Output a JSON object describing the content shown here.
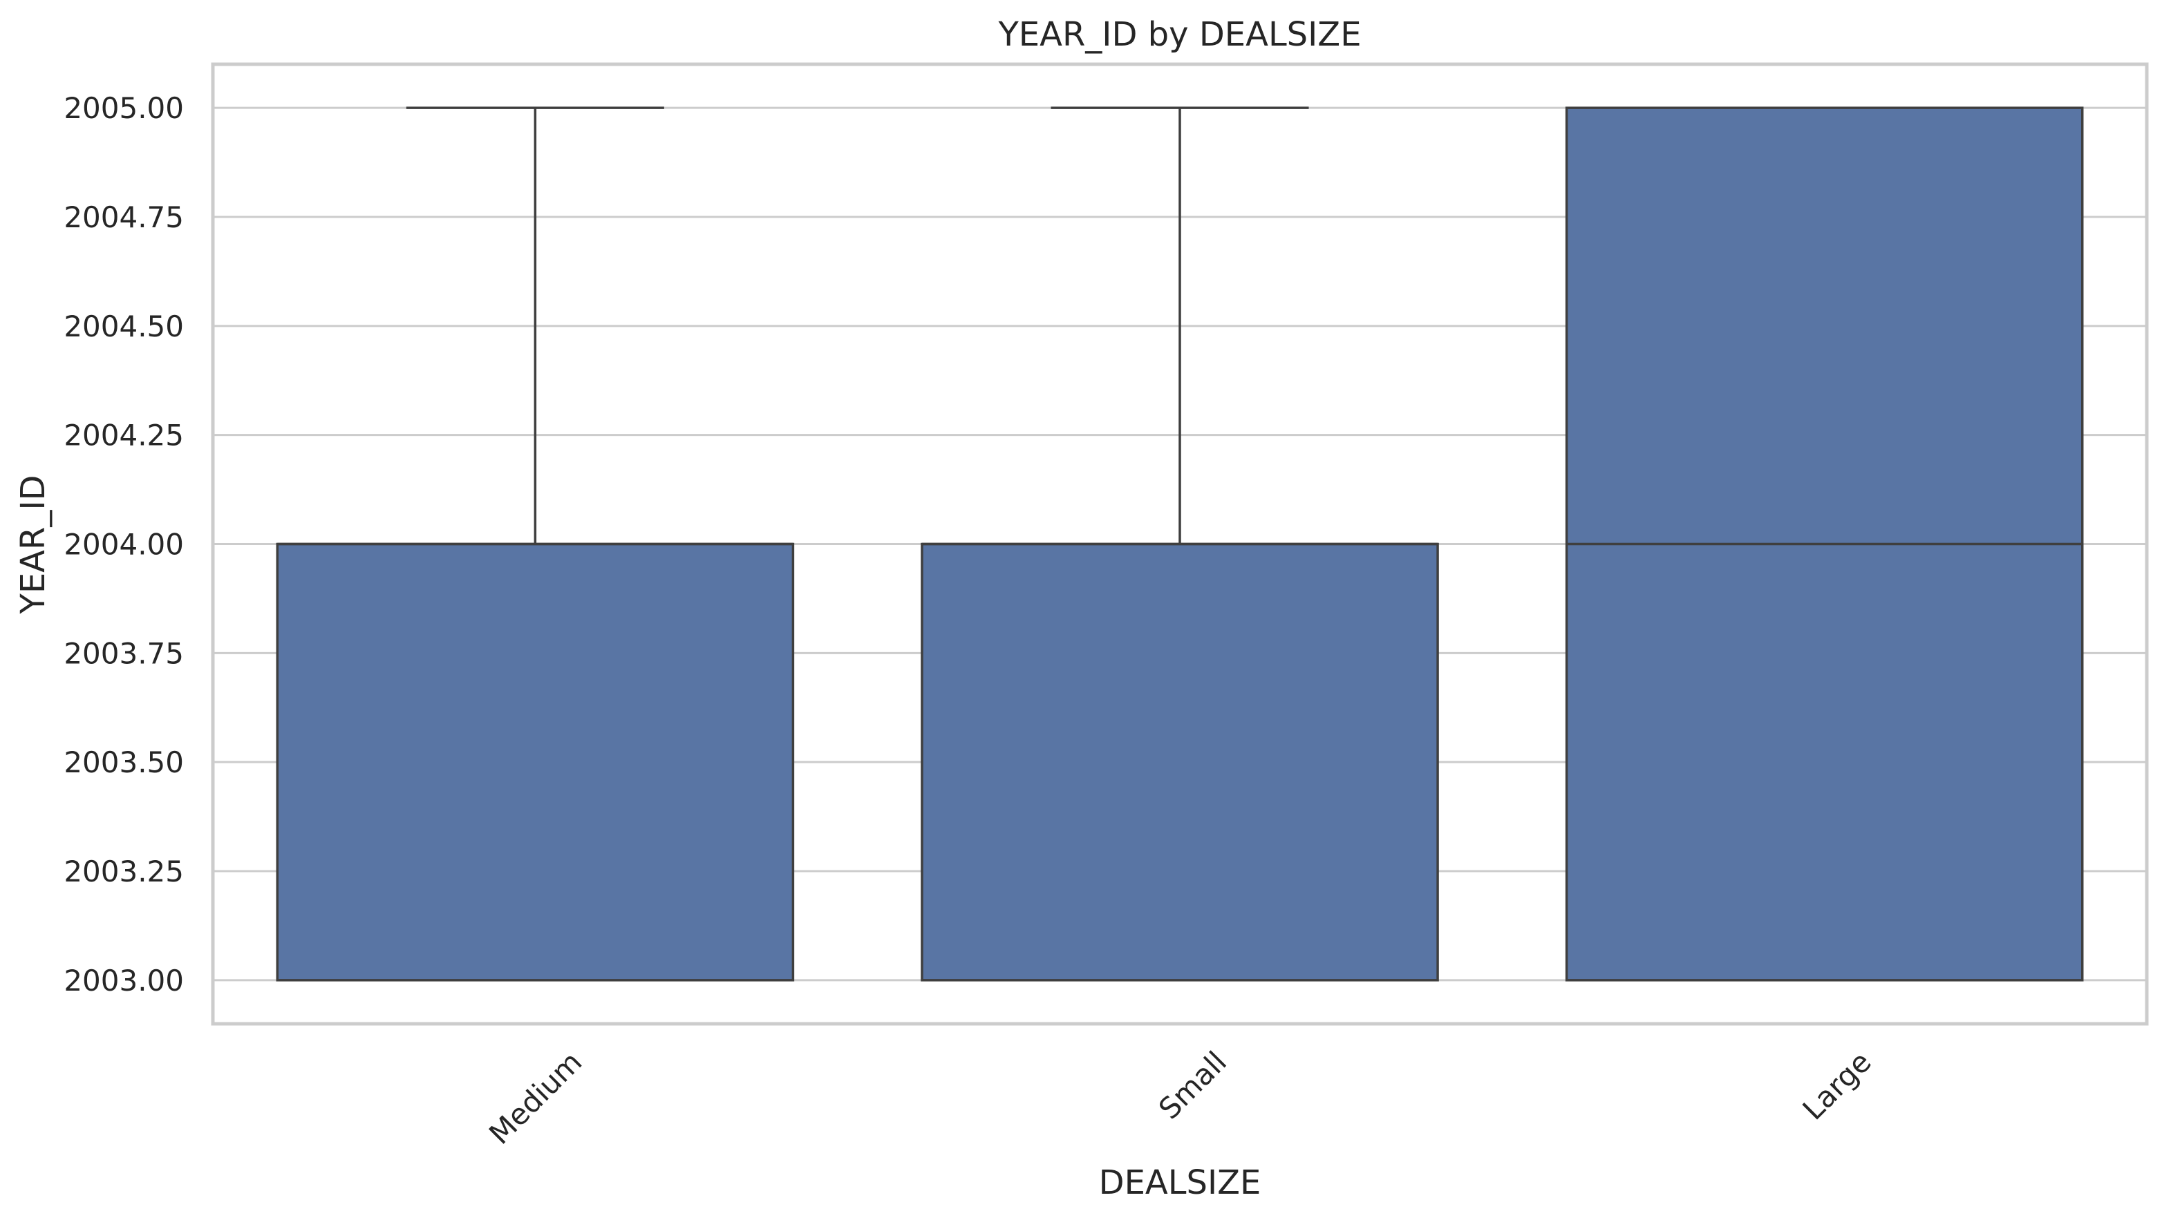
{
  "chart_data": {
    "type": "box",
    "title": "YEAR_ID by DEALSIZE",
    "xlabel": "DEALSIZE",
    "ylabel": "YEAR_ID",
    "categories": [
      "Medium",
      "Small",
      "Large"
    ],
    "boxes": [
      {
        "category": "Medium",
        "whisker_low": 2003,
        "q1": 2003,
        "median": 2004,
        "q3": 2004,
        "whisker_high": 2005
      },
      {
        "category": "Small",
        "whisker_low": 2003,
        "q1": 2003,
        "median": 2004,
        "q3": 2004,
        "whisker_high": 2005
      },
      {
        "category": "Large",
        "whisker_low": 2003,
        "q1": 2003,
        "median": 2004,
        "q3": 2005,
        "whisker_high": 2005
      }
    ],
    "ylim": [
      2002.9,
      2005.1
    ],
    "yticks": [
      "2003.00",
      "2003.25",
      "2003.50",
      "2003.75",
      "2004.00",
      "2004.25",
      "2004.50",
      "2004.75",
      "2005.00"
    ],
    "grid": true,
    "box_color": "#5975a4",
    "edge_color": "#3f3f3f",
    "grid_color": "#cccccc"
  }
}
